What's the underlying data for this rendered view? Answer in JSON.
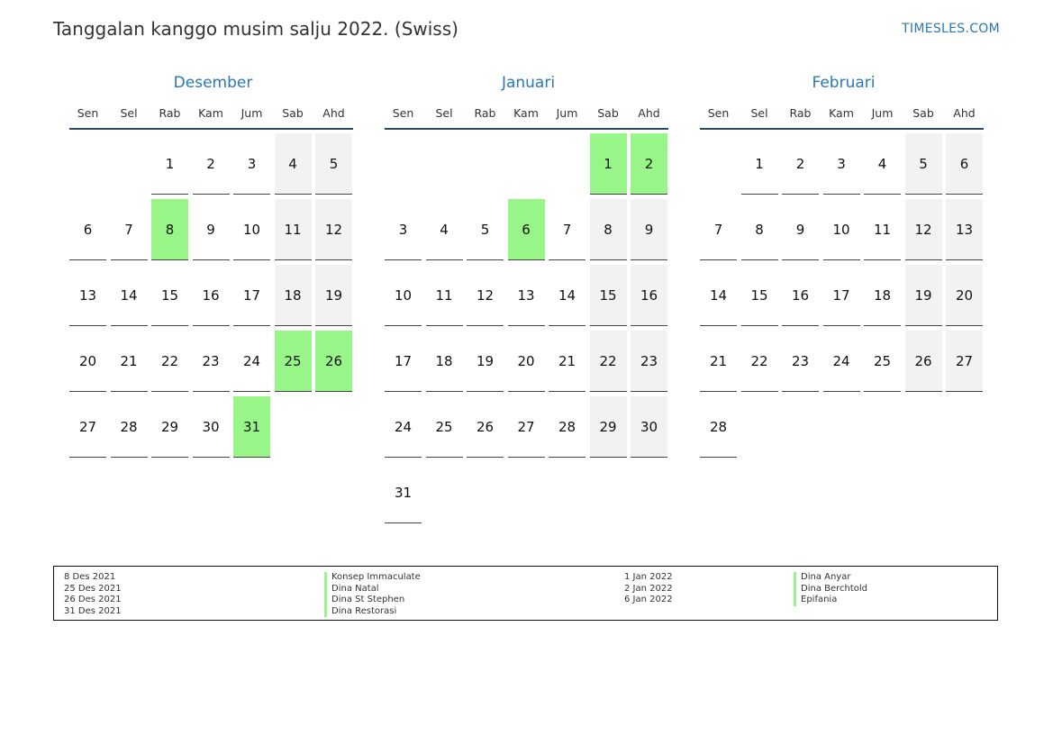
{
  "header": {
    "title": "Tanggalan kanggo musim salju 2022. (Swiss)",
    "brand": "TIMESLES.COM"
  },
  "colors": {
    "accent": "#2b77b5",
    "holiday": "#98f587",
    "weekend": "#f2f2f2"
  },
  "weekdays": [
    "Sen",
    "Sel",
    "Rab",
    "Kam",
    "Jum",
    "Sab",
    "Ahd"
  ],
  "months": [
    {
      "name": "Desember",
      "offset": 2,
      "days": 31,
      "holidays": [
        8,
        25,
        26,
        31
      ]
    },
    {
      "name": "Januari",
      "offset": 5,
      "days": 31,
      "holidays": [
        1,
        2,
        6
      ]
    },
    {
      "name": "Februari",
      "offset": 1,
      "days": 28,
      "holidays": []
    }
  ],
  "legend": {
    "left": {
      "dates": [
        "8 Des 2021",
        "25 Des 2021",
        "26 Des 2021",
        "31 Des 2021"
      ],
      "names": [
        "Konsep Immaculate",
        "Dina Natal",
        "Dina St Stephen",
        "Dina Restorasi"
      ]
    },
    "right": {
      "dates": [
        "1 Jan 2022",
        "2 Jan 2022",
        "6 Jan 2022"
      ],
      "names": [
        "Dina Anyar",
        "Dina Berchtold",
        "Epifania"
      ]
    }
  }
}
